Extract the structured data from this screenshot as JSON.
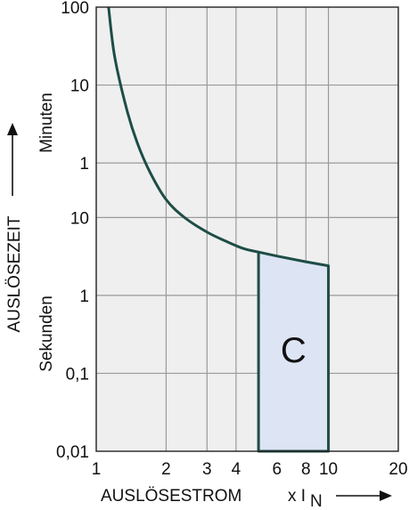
{
  "chart_data": {
    "type": "line",
    "xscale": "log",
    "xlim": [
      1,
      20
    ],
    "grid": true,
    "x_ticks": [
      1,
      2,
      3,
      4,
      6,
      8,
      10,
      20
    ],
    "x_tick_labels": [
      "1",
      "2",
      "3",
      "4",
      "6",
      "8",
      "10",
      "20"
    ],
    "y_ticks": [
      {
        "value_s": 0.01,
        "label": "0,01"
      },
      {
        "value_s": 0.1,
        "label": "0,1"
      },
      {
        "value_s": 1,
        "label": "1"
      },
      {
        "value_s": 10,
        "label": "10"
      },
      {
        "value_s": 60,
        "label": "1"
      },
      {
        "value_s": 600,
        "label": "10"
      },
      {
        "value_s": 6000,
        "label": "100"
      }
    ],
    "ylabel_arrow_text": "AUSLÖSEZEIT",
    "ylabel_minutes": "Minuten",
    "ylabel_seconds": "Sekunden",
    "xlabel": "AUSLÖSESTROM",
    "xlabel_factor": "x I",
    "xlabel_subscript": "N",
    "series": [
      {
        "x": [
          1.13,
          1.2,
          1.35,
          1.5,
          1.7,
          2.0,
          2.4,
          3.0,
          3.6,
          4.3,
          5.0
        ],
        "y": [
          6000,
          1400,
          300,
          110,
          45,
          18,
          10,
          6.5,
          5.0,
          4.0,
          3.6
        ]
      }
    ],
    "regions": [
      {
        "label": "C",
        "x_min": 5,
        "x_max": 10,
        "y_min": 0.01,
        "upper_boundary": [
          [
            5,
            3.6
          ],
          [
            6,
            3.2
          ],
          [
            8,
            2.7
          ],
          [
            10,
            2.4
          ]
        ],
        "fill": "#dde4f3"
      }
    ],
    "colors": {
      "plot_background": "#efefef",
      "grid": "#9a9a9a",
      "curve": "#1d4d46"
    }
  }
}
